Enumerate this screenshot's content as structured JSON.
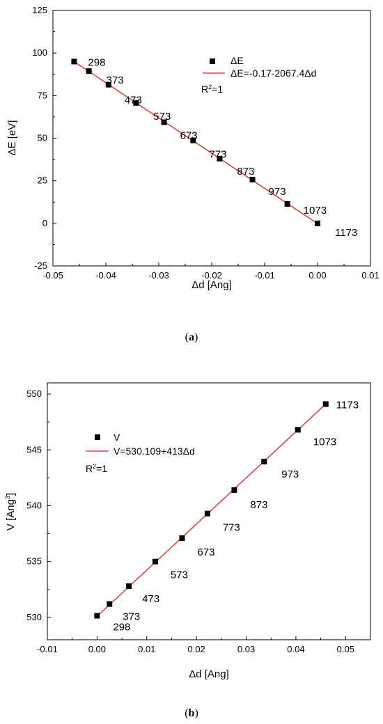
{
  "figure": {
    "panels": [
      {
        "open": "(",
        "letter": "a",
        "close": ")"
      },
      {
        "open": "(",
        "letter": "b",
        "close": ")"
      }
    ]
  },
  "chart_data": [
    {
      "type": "scatter",
      "xlabel": "Δd [Ang]",
      "ylabel": "ΔE [eV]",
      "xlim": [
        -0.05,
        0.01
      ],
      "ylim": [
        -25,
        125
      ],
      "x_ticks": [
        "-0.05",
        "-0.04",
        "-0.03",
        "-0.02",
        "-0.01",
        "0.00",
        "0.01"
      ],
      "y_ticks": [
        "-25",
        "0",
        "25",
        "50",
        "75",
        "100",
        "125"
      ],
      "marker_color": "#000000",
      "line_color": "#e0201a",
      "series": [
        {
          "name": "ΔE",
          "x": [
            -0.046,
            -0.0432,
            -0.0395,
            -0.0343,
            -0.029,
            -0.0235,
            -0.0185,
            -0.0123,
            -0.0057,
            0.0
          ],
          "y": [
            95.0,
            89.4,
            81.4,
            70.7,
            59.4,
            48.7,
            38.0,
            25.7,
            11.4,
            0.0
          ],
          "labels": [
            "298",
            "373",
            "473",
            "573",
            "673",
            "773",
            "873",
            "973",
            "1073",
            "1173"
          ]
        }
      ],
      "fit": {
        "label": "ΔE=-0.17-2067.4Δd",
        "intercept": -0.17,
        "slope": -2067.4
      },
      "r2_base": "R",
      "r2_exp": "2",
      "r2_rest": "=1"
    },
    {
      "type": "scatter",
      "xlabel": "Δd [Ang]",
      "ylabel_base": "V [Ang",
      "ylabel_exp": "3",
      "ylabel_close": "]",
      "xlim": [
        -0.01,
        0.055
      ],
      "ylim": [
        528,
        551
      ],
      "x_ticks": [
        "-0.01",
        "0.00",
        "0.01",
        "0.02",
        "0.03",
        "0.04",
        "0.05"
      ],
      "y_ticks": [
        "530",
        "535",
        "540",
        "545",
        "550"
      ],
      "marker_color": "#000000",
      "line_color": "#e0201a",
      "series": [
        {
          "name": "V",
          "x": [
            0.0,
            0.0025,
            0.0064,
            0.0117,
            0.0171,
            0.0222,
            0.0276,
            0.0336,
            0.0404,
            0.046
          ],
          "y": [
            530.15,
            531.2,
            532.8,
            535.0,
            537.1,
            539.3,
            541.4,
            543.95,
            546.8,
            549.1
          ],
          "labels": [
            "298",
            "373",
            "473",
            "573",
            "673",
            "773",
            "873",
            "973",
            "1073",
            "1173"
          ]
        }
      ],
      "fit": {
        "label": "V=530.109+413Δd",
        "intercept": 530.109,
        "slope": 413
      },
      "r2_base": "R",
      "r2_exp": "2",
      "r2_rest": "=1"
    }
  ]
}
